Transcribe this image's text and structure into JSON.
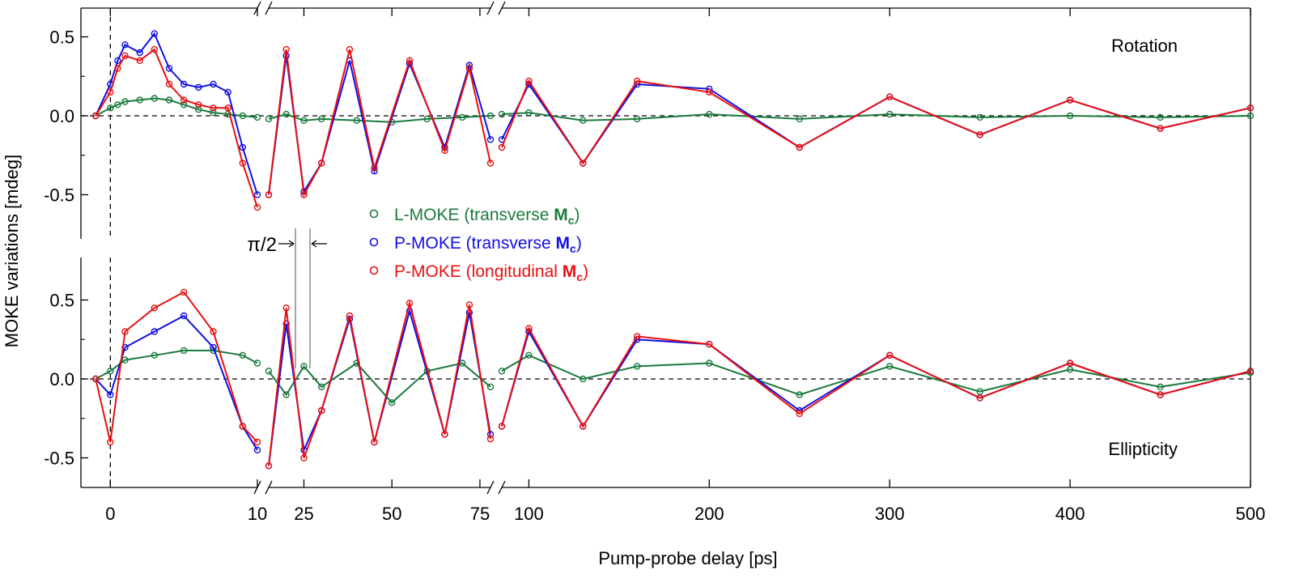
{
  "chart_data": {
    "type": "scatter",
    "title": "",
    "xlabel": "Pump-probe delay [ps]",
    "ylabel": "MOKE variations [mdeg]",
    "ylim": [
      -0.7,
      0.7
    ],
    "x_segments": [
      {
        "range": [
          -2,
          10
        ],
        "ticks": [
          0,
          10
        ]
      },
      {
        "range": [
          15,
          78
        ],
        "ticks": [
          25,
          50,
          75
        ]
      },
      {
        "range": [
          85,
          500
        ],
        "ticks": [
          100,
          200,
          300,
          400,
          500
        ]
      }
    ],
    "y_ticks": [
      "0.5",
      "0.0",
      "-0.5"
    ],
    "y_tick_values": [
      0.5,
      0.0,
      -0.5
    ],
    "annotation": "π/2",
    "panels": [
      {
        "name": "Rotation",
        "series": [
          {
            "name": "L-MOKE (transverse Mc)",
            "color": "#1a7a3c",
            "points": [
              [
                -1,
                0.0
              ],
              [
                0,
                0.05
              ],
              [
                0.5,
                0.07
              ],
              [
                1,
                0.09
              ],
              [
                2,
                0.1
              ],
              [
                3,
                0.11
              ],
              [
                4,
                0.1
              ],
              [
                5,
                0.07
              ],
              [
                6,
                0.04
              ],
              [
                7,
                0.02
              ],
              [
                8,
                0.01
              ],
              [
                9,
                0.0
              ],
              [
                10,
                -0.01
              ],
              [
                15,
                -0.02
              ],
              [
                20,
                0.01
              ],
              [
                25,
                -0.03
              ],
              [
                30,
                -0.02
              ],
              [
                40,
                -0.03
              ],
              [
                50,
                -0.04
              ],
              [
                60,
                -0.02
              ],
              [
                70,
                -0.01
              ],
              [
                78,
                0.0
              ],
              [
                85,
                0.01
              ],
              [
                100,
                0.02
              ],
              [
                130,
                -0.03
              ],
              [
                160,
                -0.02
              ],
              [
                200,
                0.01
              ],
              [
                250,
                -0.02
              ],
              [
                300,
                0.01
              ],
              [
                350,
                -0.01
              ],
              [
                400,
                0.0
              ],
              [
                450,
                -0.01
              ],
              [
                500,
                0.0
              ]
            ]
          },
          {
            "name": "P-MOKE (transverse Mc)",
            "color": "#1010e0",
            "points": [
              [
                -1,
                0.0
              ],
              [
                0,
                0.2
              ],
              [
                0.5,
                0.35
              ],
              [
                1,
                0.45
              ],
              [
                2,
                0.4
              ],
              [
                3,
                0.52
              ],
              [
                4,
                0.3
              ],
              [
                5,
                0.2
              ],
              [
                6,
                0.18
              ],
              [
                7,
                0.2
              ],
              [
                8,
                0.15
              ],
              [
                9,
                -0.2
              ],
              [
                10,
                -0.5
              ],
              [
                15,
                -0.5
              ],
              [
                20,
                0.38
              ],
              [
                25,
                -0.48
              ],
              [
                30,
                -0.3
              ],
              [
                38,
                0.35
              ],
              [
                45,
                -0.35
              ],
              [
                55,
                0.33
              ],
              [
                65,
                -0.2
              ],
              [
                72,
                0.32
              ],
              [
                78,
                -0.15
              ],
              [
                85,
                -0.15
              ],
              [
                100,
                0.2
              ],
              [
                130,
                -0.3
              ],
              [
                160,
                0.2
              ],
              [
                200,
                0.17
              ],
              [
                250,
                -0.2
              ],
              [
                300,
                0.12
              ],
              [
                350,
                -0.12
              ],
              [
                400,
                0.1
              ],
              [
                450,
                -0.08
              ],
              [
                500,
                0.05
              ]
            ]
          },
          {
            "name": "P-MOKE (longitudinal Mc)",
            "color": "#e81010",
            "points": [
              [
                -1,
                0.0
              ],
              [
                0,
                0.15
              ],
              [
                0.5,
                0.3
              ],
              [
                1,
                0.38
              ],
              [
                2,
                0.35
              ],
              [
                3,
                0.42
              ],
              [
                4,
                0.2
              ],
              [
                5,
                0.1
              ],
              [
                6,
                0.07
              ],
              [
                7,
                0.05
              ],
              [
                8,
                0.05
              ],
              [
                9,
                -0.3
              ],
              [
                10,
                -0.58
              ],
              [
                15,
                -0.5
              ],
              [
                20,
                0.42
              ],
              [
                25,
                -0.5
              ],
              [
                30,
                -0.3
              ],
              [
                38,
                0.42
              ],
              [
                45,
                -0.33
              ],
              [
                55,
                0.35
              ],
              [
                65,
                -0.22
              ],
              [
                72,
                0.3
              ],
              [
                78,
                -0.3
              ],
              [
                85,
                -0.2
              ],
              [
                100,
                0.22
              ],
              [
                130,
                -0.3
              ],
              [
                160,
                0.22
              ],
              [
                200,
                0.15
              ],
              [
                250,
                -0.2
              ],
              [
                300,
                0.12
              ],
              [
                350,
                -0.12
              ],
              [
                400,
                0.1
              ],
              [
                450,
                -0.08
              ],
              [
                500,
                0.05
              ]
            ]
          }
        ]
      },
      {
        "name": "Ellipticity",
        "series": [
          {
            "name": "L-MOKE (transverse Mc)",
            "color": "#1a7a3c",
            "points": [
              [
                -1,
                0.0
              ],
              [
                0,
                0.05
              ],
              [
                1,
                0.12
              ],
              [
                3,
                0.15
              ],
              [
                5,
                0.18
              ],
              [
                7,
                0.18
              ],
              [
                9,
                0.15
              ],
              [
                10,
                0.1
              ],
              [
                15,
                0.05
              ],
              [
                20,
                -0.1
              ],
              [
                25,
                0.08
              ],
              [
                30,
                -0.05
              ],
              [
                40,
                0.1
              ],
              [
                50,
                -0.15
              ],
              [
                60,
                0.05
              ],
              [
                70,
                0.1
              ],
              [
                78,
                -0.05
              ],
              [
                85,
                0.05
              ],
              [
                100,
                0.15
              ],
              [
                130,
                0.0
              ],
              [
                160,
                0.08
              ],
              [
                200,
                0.1
              ],
              [
                250,
                -0.1
              ],
              [
                300,
                0.08
              ],
              [
                350,
                -0.08
              ],
              [
                400,
                0.06
              ],
              [
                450,
                -0.05
              ],
              [
                500,
                0.04
              ]
            ]
          },
          {
            "name": "P-MOKE (transverse Mc)",
            "color": "#1010e0",
            "points": [
              [
                -1,
                0.0
              ],
              [
                0,
                -0.1
              ],
              [
                1,
                0.2
              ],
              [
                3,
                0.3
              ],
              [
                5,
                0.4
              ],
              [
                7,
                0.2
              ],
              [
                9,
                -0.3
              ],
              [
                10,
                -0.45
              ],
              [
                15,
                -0.55
              ],
              [
                20,
                0.35
              ],
              [
                25,
                -0.45
              ],
              [
                30,
                -0.2
              ],
              [
                38,
                0.38
              ],
              [
                45,
                -0.4
              ],
              [
                55,
                0.43
              ],
              [
                65,
                -0.35
              ],
              [
                72,
                0.42
              ],
              [
                78,
                -0.35
              ],
              [
                85,
                -0.3
              ],
              [
                100,
                0.3
              ],
              [
                130,
                -0.3
              ],
              [
                160,
                0.25
              ],
              [
                200,
                0.22
              ],
              [
                250,
                -0.2
              ],
              [
                300,
                0.15
              ],
              [
                350,
                -0.12
              ],
              [
                400,
                0.1
              ],
              [
                450,
                -0.1
              ],
              [
                500,
                0.05
              ]
            ]
          },
          {
            "name": "P-MOKE (longitudinal Mc)",
            "color": "#e81010",
            "points": [
              [
                -1,
                0.0
              ],
              [
                0,
                -0.4
              ],
              [
                1,
                0.3
              ],
              [
                3,
                0.45
              ],
              [
                5,
                0.55
              ],
              [
                7,
                0.3
              ],
              [
                9,
                -0.3
              ],
              [
                10,
                -0.4
              ],
              [
                15,
                -0.55
              ],
              [
                20,
                0.45
              ],
              [
                25,
                -0.5
              ],
              [
                30,
                -0.2
              ],
              [
                38,
                0.4
              ],
              [
                45,
                -0.4
              ],
              [
                55,
                0.48
              ],
              [
                65,
                -0.35
              ],
              [
                72,
                0.47
              ],
              [
                78,
                -0.38
              ],
              [
                85,
                -0.3
              ],
              [
                100,
                0.32
              ],
              [
                130,
                -0.3
              ],
              [
                160,
                0.27
              ],
              [
                200,
                0.22
              ],
              [
                250,
                -0.22
              ],
              [
                300,
                0.15
              ],
              [
                350,
                -0.12
              ],
              [
                400,
                0.1
              ],
              [
                450,
                -0.1
              ],
              [
                500,
                0.05
              ]
            ]
          }
        ]
      }
    ],
    "legend": [
      {
        "prefix": "L-MOKE (transverse ",
        "bold": "M",
        "sub": "c",
        "suffix": ")",
        "color": "#1a7a3c"
      },
      {
        "prefix": "P-MOKE (transverse ",
        "bold": "M",
        "sub": "c",
        "suffix": ")",
        "color": "#1010e0"
      },
      {
        "prefix": "P-MOKE (longitudinal ",
        "bold": "M",
        "sub": "c",
        "suffix": ")",
        "color": "#e81010"
      }
    ]
  }
}
